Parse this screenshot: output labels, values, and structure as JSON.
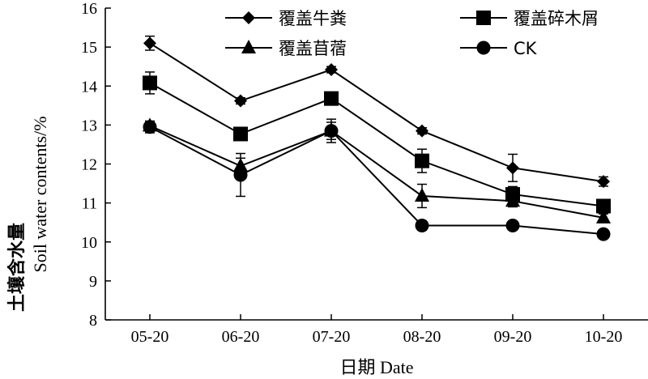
{
  "chart_data": {
    "type": "line",
    "categories": [
      "05-20",
      "06-20",
      "07-20",
      "08-20",
      "09-20",
      "10-20"
    ],
    "xlabel": "日期 Date",
    "ylabel": "土壤含水量 Soil water contents/%",
    "ylabel_cn": "土壤含水量",
    "ylabel_en": "Soil water contents/%",
    "ylim": [
      8,
      16
    ],
    "yticks": [
      8,
      9,
      10,
      11,
      12,
      13,
      14,
      15,
      16
    ],
    "grid": false,
    "legend": "top",
    "series": [
      {
        "name": "覆盖牛粪",
        "marker": "diamond",
        "values": [
          15.1,
          13.62,
          14.42,
          12.85,
          11.9,
          11.55
        ],
        "errors": [
          0.18,
          0.08,
          0.08,
          0.08,
          0.35,
          0.12
        ]
      },
      {
        "name": "覆盖碎木屑",
        "marker": "square",
        "values": [
          14.08,
          12.77,
          13.68,
          12.08,
          11.22,
          10.92
        ],
        "errors": [
          0.28,
          0.12,
          0.1,
          0.3,
          0.2,
          0.12
        ]
      },
      {
        "name": "覆盖苜蓿",
        "marker": "triangle",
        "values": [
          12.98,
          11.95,
          12.85,
          11.18,
          11.05,
          10.62
        ],
        "errors": [
          0.12,
          0.2,
          0.3,
          0.3,
          0.15,
          0.1
        ]
      },
      {
        "name": "CK",
        "marker": "circle",
        "values": [
          12.95,
          11.72,
          12.85,
          10.42,
          10.42,
          10.2
        ],
        "errors": [
          0.15,
          0.55,
          0.22,
          0.12,
          0.1,
          0.08
        ]
      }
    ]
  }
}
